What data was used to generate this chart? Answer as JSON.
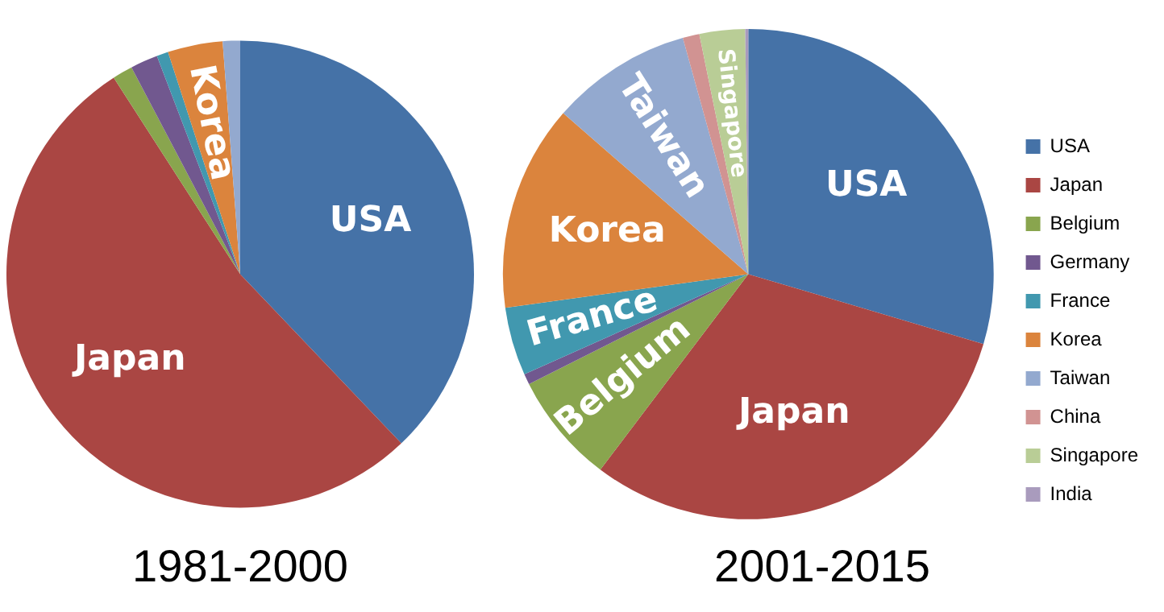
{
  "chart_data": [
    {
      "type": "pie",
      "title": "1981-2000",
      "categories": [
        "USA",
        "Japan",
        null,
        null,
        null,
        "Korea",
        null
      ],
      "values": [
        37.9,
        53.0,
        1.4,
        1.9,
        0.8,
        3.8,
        1.2
      ],
      "colors": [
        "#4572a7",
        "#aa4643",
        "#89a54e",
        "#71588f",
        "#4198af",
        "#db843d",
        "#93a9cf"
      ],
      "legend": false
    },
    {
      "type": "pie",
      "title": "2001-2015",
      "categories": [
        "USA",
        "Japan",
        "Belgium",
        "Germany",
        "France",
        "Korea",
        "Taiwan",
        "China",
        "Singapore",
        "India"
      ],
      "values": [
        29.6,
        30.7,
        7.3,
        0.7,
        4.5,
        13.6,
        9.3,
        1.1,
        3.0,
        0.2
      ],
      "colors": [
        "#4572a7",
        "#aa4643",
        "#89a54e",
        "#71588f",
        "#4198af",
        "#db843d",
        "#93a9cf",
        "#d19392",
        "#b9cd96",
        "#a99bbd"
      ],
      "annotations": [
        {
          "text": "USA",
          "x": "USA"
        },
        {
          "text": "Japan",
          "x": "Japan"
        },
        {
          "text": "Belgium",
          "x": "Belgium"
        },
        {
          "text": "France",
          "x": "France"
        },
        {
          "text": "Korea",
          "x": "Korea"
        },
        {
          "text": "Taiwan",
          "x": "Taiwan"
        },
        {
          "text": "Singapore",
          "x": "Singapore"
        }
      ],
      "legend": "right"
    }
  ]
}
